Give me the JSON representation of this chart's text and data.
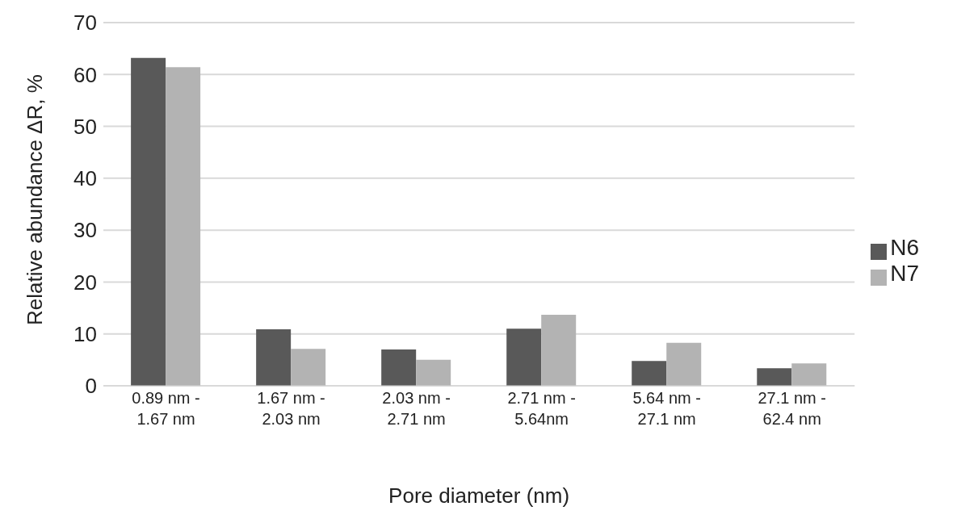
{
  "chart_data": {
    "type": "bar",
    "xlabel": "Pore diameter (nm)",
    "ylabel": "Relative abundance ΔR, %",
    "categories": [
      "0.89 nm -\n1.67 nm",
      "1.67 nm -\n2.03 nm",
      "2.03 nm -\n2.71 nm",
      "2.71 nm -\n5.64nm",
      "5.64 nm -\n27.1 nm",
      "27.1 nm -\n62.4 nm"
    ],
    "series": [
      {
        "name": "N6",
        "color": "#595959",
        "values": [
          63.2,
          10.9,
          7,
          11,
          4.8,
          3.4
        ]
      },
      {
        "name": "N7",
        "color": "#b3b3b3",
        "values": [
          61.4,
          7.1,
          5,
          13.7,
          8.3,
          4.3
        ]
      }
    ],
    "ylim": [
      0,
      70
    ],
    "yticks": [
      0,
      10,
      20,
      30,
      40,
      50,
      60,
      70
    ],
    "grid": "y",
    "legend": "right"
  }
}
